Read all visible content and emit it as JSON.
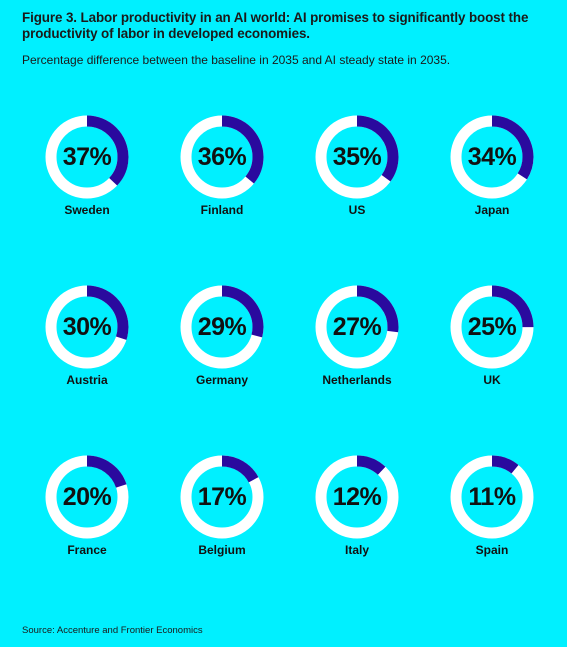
{
  "header": {
    "title": "Figure 3. Labor productivity in an AI world: AI promises to significantly boost the productivity of labor in developed economies.",
    "subtitle": "Percentage difference between the baseline in 2035 and AI steady state in 2035."
  },
  "footer": {
    "source": "Source: Accenture and Frontier Economics"
  },
  "colors": {
    "background": "#00f0ff",
    "ring": "#ffffff",
    "value_arc": "#2a0a9e"
  },
  "chart_data": {
    "type": "pie",
    "title": "Figure 3. Labor productivity in an AI world: AI promises to significantly boost the productivity of labor in developed economies.",
    "subtitle": "Percentage difference between the baseline in 2035 and AI steady state in 2035.",
    "categories": [
      "Sweden",
      "Finland",
      "US",
      "Japan",
      "Austria",
      "Germany",
      "Netherlands",
      "UK",
      "France",
      "Belgium",
      "Italy",
      "Spain"
    ],
    "values": [
      37,
      36,
      35,
      34,
      30,
      29,
      27,
      25,
      20,
      17,
      12,
      11
    ],
    "labels": [
      "37%",
      "36%",
      "35%",
      "34%",
      "30%",
      "29%",
      "27%",
      "25%",
      "20%",
      "17%",
      "12%",
      "11%"
    ],
    "unit": "%",
    "max": 100
  }
}
